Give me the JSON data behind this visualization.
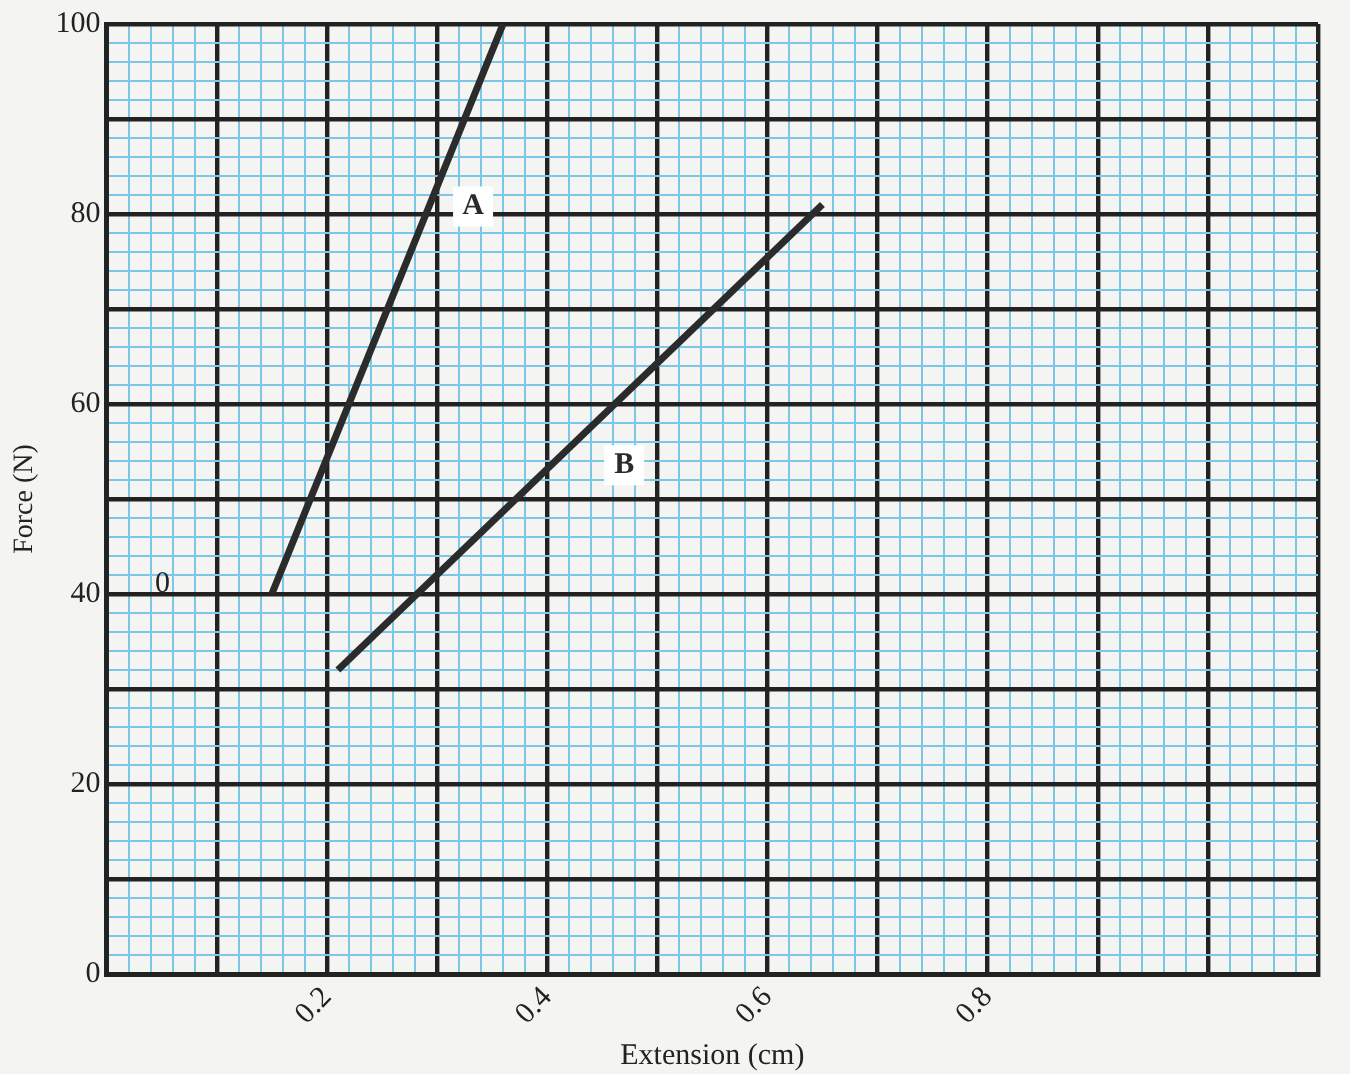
{
  "chart_data": {
    "type": "line",
    "xlabel": "Extension (cm)",
    "ylabel": "Force (N)",
    "xlim": [
      0,
      1.1
    ],
    "ylim": [
      0,
      100
    ],
    "xticks": [
      {
        "value": 0,
        "label": null
      },
      {
        "value": 0.02,
        "label": null
      },
      {
        "value": 0.04,
        "label": null
      },
      {
        "value": 0.06,
        "label": null
      },
      {
        "value": 0.08,
        "label": null
      },
      {
        "value": 0.1,
        "label": null
      },
      {
        "value": 0.12,
        "label": null
      },
      {
        "value": 0.14,
        "label": null
      },
      {
        "value": 0.16,
        "label": null
      },
      {
        "value": 0.18,
        "label": null
      },
      0.2,
      {
        "value": 0.22,
        "label": null
      },
      {
        "value": 0.24,
        "label": null
      },
      {
        "value": 0.26,
        "label": null
      },
      {
        "value": 0.28,
        "label": null
      },
      {
        "value": 0.3,
        "label": null
      },
      {
        "value": 0.32,
        "label": null
      },
      {
        "value": 0.34,
        "label": null
      },
      {
        "value": 0.36,
        "label": null
      },
      {
        "value": 0.38,
        "label": null
      },
      0.4,
      {
        "value": 0.42,
        "label": null
      },
      {
        "value": 0.44,
        "label": null
      },
      {
        "value": 0.46,
        "label": null
      },
      {
        "value": 0.48,
        "label": null
      },
      {
        "value": 0.5,
        "label": null
      },
      {
        "value": 0.52,
        "label": null
      },
      {
        "value": 0.54,
        "label": null
      },
      {
        "value": 0.56,
        "label": null
      },
      {
        "value": 0.58,
        "label": null
      },
      0.6,
      {
        "value": 0.62,
        "label": null
      },
      {
        "value": 0.64,
        "label": null
      },
      {
        "value": 0.66,
        "label": null
      },
      {
        "value": 0.68,
        "label": null
      },
      {
        "value": 0.7,
        "label": null
      },
      {
        "value": 0.72,
        "label": null
      },
      {
        "value": 0.74,
        "label": null
      },
      {
        "value": 0.76,
        "label": null
      },
      {
        "value": 0.78,
        "label": null
      },
      0.8,
      {
        "value": 0.82,
        "label": null
      },
      {
        "value": 0.84,
        "label": null
      },
      {
        "value": 0.86,
        "label": null
      },
      {
        "value": 0.88,
        "label": null
      },
      {
        "value": 0.9,
        "label": null
      },
      {
        "value": 0.92,
        "label": null
      },
      {
        "value": 0.94,
        "label": null
      },
      {
        "value": 0.96,
        "label": null
      },
      {
        "value": 0.98,
        "label": null
      },
      {
        "value": 1.0,
        "label": null
      },
      {
        "value": 1.02,
        "label": null
      },
      {
        "value": 1.04,
        "label": null
      },
      {
        "value": 1.06,
        "label": null
      },
      {
        "value": 1.08,
        "label": null
      },
      {
        "value": 1.1,
        "label": null
      }
    ],
    "yticks": [
      0,
      {
        "value": 2,
        "label": null
      },
      {
        "value": 4,
        "label": null
      },
      {
        "value": 6,
        "label": null
      },
      {
        "value": 8,
        "label": null
      },
      {
        "value": 10,
        "label": null
      },
      {
        "value": 12,
        "label": null
      },
      {
        "value": 14,
        "label": null
      },
      {
        "value": 16,
        "label": null
      },
      {
        "value": 18,
        "label": null
      },
      20,
      {
        "value": 22,
        "label": null
      },
      {
        "value": 24,
        "label": null
      },
      {
        "value": 26,
        "label": null
      },
      {
        "value": 28,
        "label": null
      },
      {
        "value": 30,
        "label": null
      },
      {
        "value": 32,
        "label": null
      },
      {
        "value": 34,
        "label": null
      },
      {
        "value": 36,
        "label": null
      },
      {
        "value": 38,
        "label": null
      },
      40,
      {
        "value": 42,
        "label": null
      },
      {
        "value": 44,
        "label": null
      },
      {
        "value": 46,
        "label": null
      },
      {
        "value": 48,
        "label": null
      },
      {
        "value": 50,
        "label": null
      },
      {
        "value": 52,
        "label": null
      },
      {
        "value": 54,
        "label": null
      },
      {
        "value": 56,
        "label": null
      },
      {
        "value": 58,
        "label": null
      },
      60,
      {
        "value": 62,
        "label": null
      },
      {
        "value": 64,
        "label": null
      },
      {
        "value": 66,
        "label": null
      },
      {
        "value": 68,
        "label": null
      },
      {
        "value": 70,
        "label": null
      },
      {
        "value": 72,
        "label": null
      },
      {
        "value": 74,
        "label": null
      },
      {
        "value": 76,
        "label": null
      },
      {
        "value": 78,
        "label": null
      },
      80,
      {
        "value": 82,
        "label": null
      },
      {
        "value": 84,
        "label": null
      },
      {
        "value": 86,
        "label": null
      },
      {
        "value": 88,
        "label": null
      },
      {
        "value": 90,
        "label": null
      },
      {
        "value": 92,
        "label": null
      },
      {
        "value": 94,
        "label": null
      },
      {
        "value": 96,
        "label": null
      },
      {
        "value": 98,
        "label": null
      },
      100
    ],
    "grid": true,
    "marker": "none",
    "line_style": "solid",
    "series": [
      {
        "name": "A",
        "color": "#2b2b2b",
        "x": [
          0.15,
          0.36
        ],
        "values": [
          40,
          100
        ]
      },
      {
        "name": "B",
        "color": "#2b2b2b",
        "x": [
          0.21,
          0.65
        ],
        "values": [
          32,
          81
        ]
      }
    ],
    "annotations": [
      "0"
    ]
  }
}
